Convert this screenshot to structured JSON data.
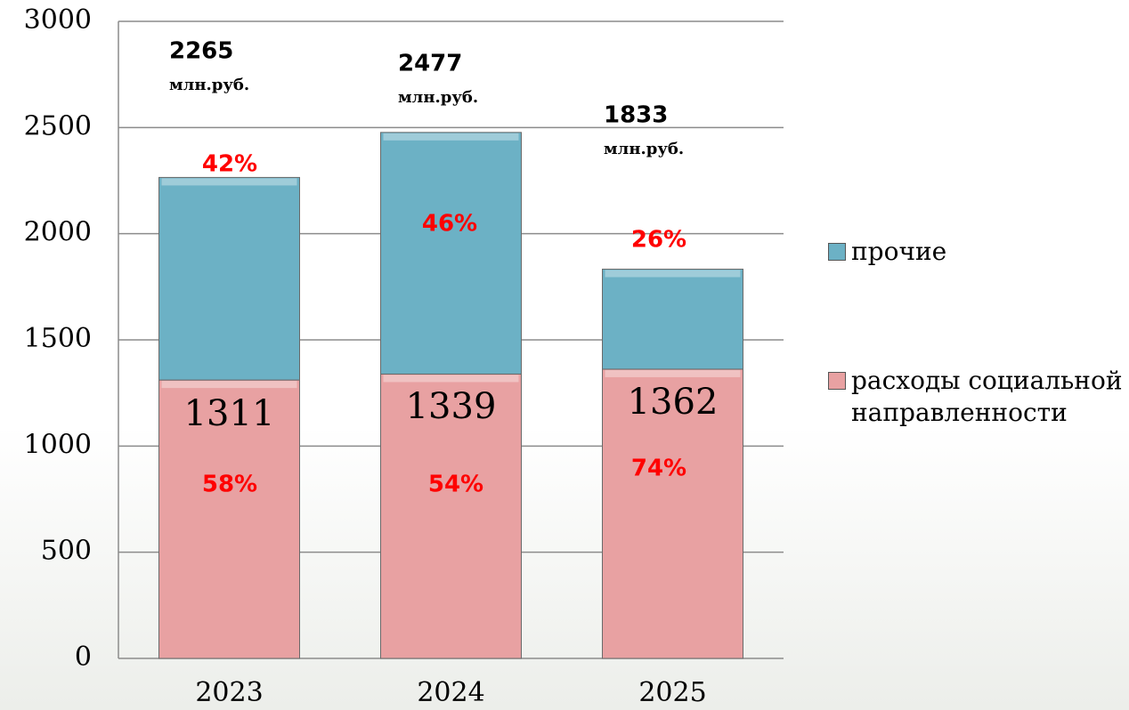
{
  "chart_data": {
    "type": "stacked_bar",
    "categories": [
      "2023",
      "2024",
      "2025"
    ],
    "series": [
      {
        "name": "расходы социальной направленности",
        "color": "#e8a1a2",
        "values": [
          1311,
          1339,
          1362
        ],
        "percent": [
          58,
          54,
          74
        ],
        "percent_labels": [
          "58%",
          "54%",
          "74%"
        ]
      },
      {
        "name": "прочие",
        "color": "#6cb1c5",
        "values": [
          954,
          1138,
          471
        ],
        "percent": [
          42,
          46,
          26
        ],
        "percent_labels": [
          "42%",
          "46%",
          "26%"
        ]
      }
    ],
    "totals": [
      2265,
      2477,
      1833
    ],
    "totals_unit": "млн.руб.",
    "ylim": [
      0,
      3000
    ],
    "yticks": [
      0,
      500,
      1000,
      1500,
      2000,
      2500,
      3000
    ],
    "grid": true,
    "legend": "right"
  }
}
